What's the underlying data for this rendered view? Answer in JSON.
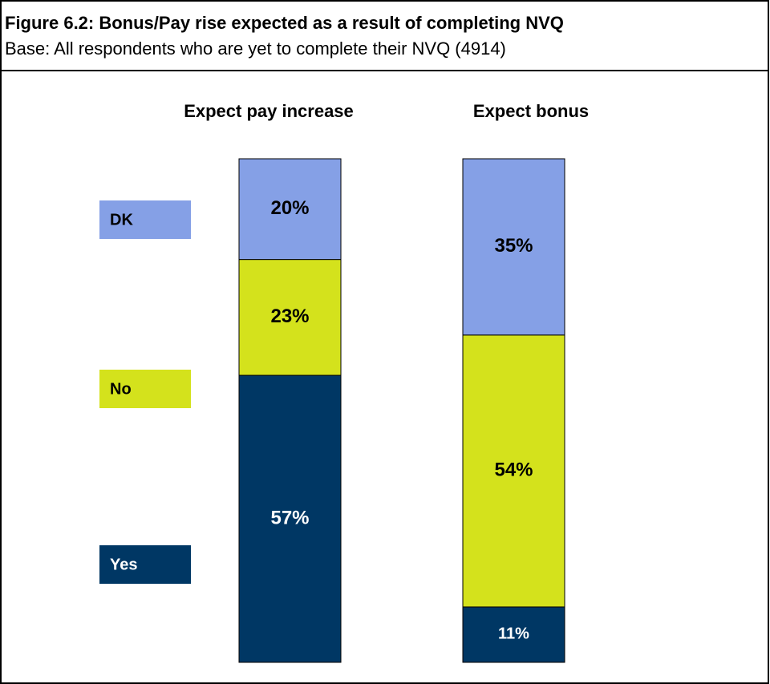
{
  "chart_data": {
    "type": "stacked_bar",
    "title": "Figure 6.2: Bonus/Pay rise expected as a result of completing NVQ",
    "subtitle": "Base: All respondents who are yet to complete their NVQ (4914)",
    "categories": [
      "Expect pay increase",
      "Expect bonus"
    ],
    "ylim": [
      0,
      100
    ],
    "series": [
      {
        "name": "Yes",
        "color": "#003764",
        "values": [
          57,
          11
        ],
        "value_labels": [
          "57%",
          "11%"
        ]
      },
      {
        "name": "No",
        "color": "#d4e21c",
        "values": [
          23,
          54
        ],
        "value_labels": [
          "23%",
          "54%"
        ]
      },
      {
        "name": "DK",
        "color": "#85a0e6",
        "values": [
          20,
          35
        ],
        "value_labels": [
          "20%",
          "35%"
        ]
      }
    ]
  }
}
